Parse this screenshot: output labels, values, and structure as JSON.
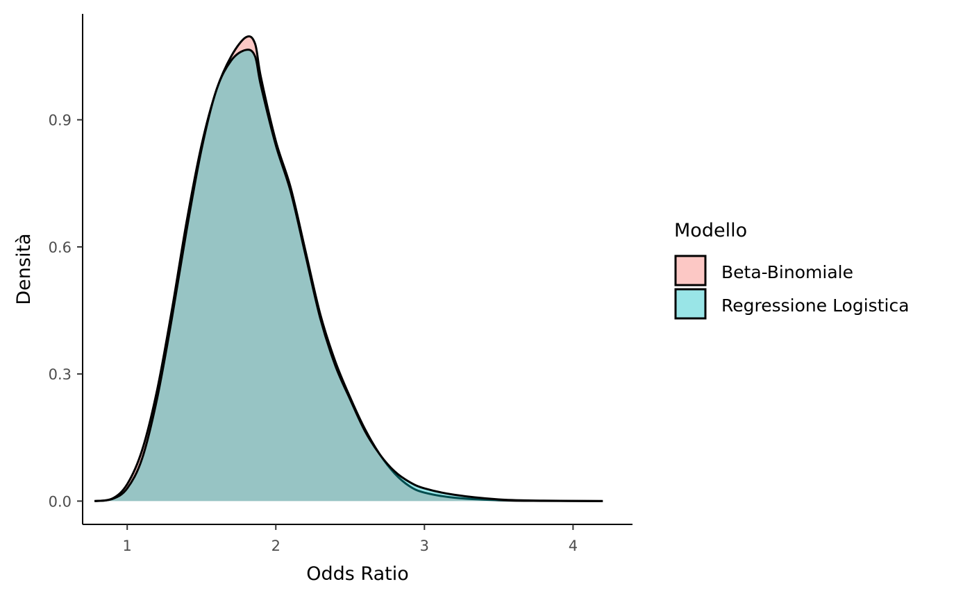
{
  "chart_data": {
    "type": "area",
    "xlabel": "Odds Ratio",
    "ylabel": "Densità",
    "xlim": [
      0.7,
      4.4
    ],
    "ylim": [
      -0.055,
      1.15
    ],
    "x_ticks": [
      "1",
      "2",
      "3",
      "4"
    ],
    "y_ticks": [
      "0.0",
      "0.3",
      "0.6",
      "0.9"
    ],
    "x_tick_values": [
      1,
      2,
      3,
      4
    ],
    "y_tick_values": [
      0.0,
      0.3,
      0.6,
      0.9
    ],
    "grid": false,
    "legend": {
      "title": "Modello",
      "placement": "right"
    },
    "series": [
      {
        "name": "Beta-Binomiale",
        "fill": "#F8766D",
        "points": [
          [
            0.78,
            0.0
          ],
          [
            0.9,
            0.006
          ],
          [
            1.0,
            0.04
          ],
          [
            1.1,
            0.12
          ],
          [
            1.2,
            0.26
          ],
          [
            1.3,
            0.45
          ],
          [
            1.4,
            0.66
          ],
          [
            1.5,
            0.84
          ],
          [
            1.6,
            0.97
          ],
          [
            1.7,
            1.05
          ],
          [
            1.8,
            1.095
          ],
          [
            1.86,
            1.08
          ],
          [
            1.9,
            1.0
          ],
          [
            2.0,
            0.85
          ],
          [
            2.1,
            0.74
          ],
          [
            2.2,
            0.59
          ],
          [
            2.3,
            0.44
          ],
          [
            2.4,
            0.33
          ],
          [
            2.5,
            0.245
          ],
          [
            2.6,
            0.17
          ],
          [
            2.7,
            0.11
          ],
          [
            2.8,
            0.065
          ],
          [
            2.9,
            0.035
          ],
          [
            3.0,
            0.02
          ],
          [
            3.2,
            0.008
          ],
          [
            3.5,
            0.002
          ],
          [
            3.8,
            0.0005
          ],
          [
            4.2,
            0.0
          ]
        ]
      },
      {
        "name": "Regressione Logistica",
        "fill": "#00BFC4",
        "points": [
          [
            0.78,
            0.0
          ],
          [
            0.9,
            0.005
          ],
          [
            1.0,
            0.03
          ],
          [
            1.1,
            0.1
          ],
          [
            1.2,
            0.24
          ],
          [
            1.3,
            0.43
          ],
          [
            1.4,
            0.64
          ],
          [
            1.5,
            0.83
          ],
          [
            1.6,
            0.97
          ],
          [
            1.7,
            1.04
          ],
          [
            1.8,
            1.065
          ],
          [
            1.86,
            1.05
          ],
          [
            1.9,
            0.98
          ],
          [
            2.0,
            0.84
          ],
          [
            2.1,
            0.73
          ],
          [
            2.2,
            0.58
          ],
          [
            2.3,
            0.43
          ],
          [
            2.4,
            0.32
          ],
          [
            2.5,
            0.24
          ],
          [
            2.6,
            0.165
          ],
          [
            2.7,
            0.11
          ],
          [
            2.8,
            0.07
          ],
          [
            2.9,
            0.045
          ],
          [
            3.0,
            0.03
          ],
          [
            3.2,
            0.015
          ],
          [
            3.5,
            0.004
          ],
          [
            3.8,
            0.001
          ],
          [
            4.2,
            0.0
          ]
        ]
      }
    ]
  }
}
